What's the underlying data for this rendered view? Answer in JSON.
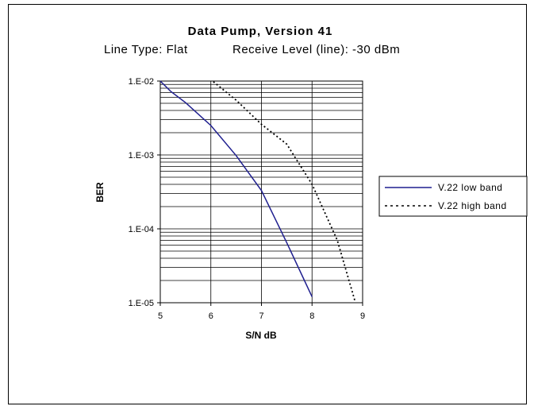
{
  "chart_data": {
    "type": "line",
    "title": "Data Pump, Version 41",
    "subtitle_left": "Line Type: Flat",
    "subtitle_right": "Receive Level (line): -30 dBm",
    "xlabel": "S/N dB",
    "ylabel": "BER",
    "xlim": [
      5,
      9
    ],
    "ylim": [
      1e-05,
      0.01
    ],
    "yscale": "log",
    "x_ticks": [
      "5",
      "6",
      "7",
      "8",
      "9"
    ],
    "y_ticks": [
      "1.E-02",
      "1.E-03",
      "1.E-04",
      "1.E-05"
    ],
    "grid": true,
    "legend_position": "right",
    "series": [
      {
        "name": "V.22 low band",
        "color": "#1f1f8f",
        "style": "solid",
        "x": [
          5.0,
          5.2,
          5.5,
          6.0,
          6.5,
          7.0,
          7.5,
          8.0
        ],
        "y": [
          0.01,
          0.0073,
          0.0051,
          0.0025,
          0.00098,
          0.00033,
          6.5e-05,
          1.2e-05
        ]
      },
      {
        "name": "V.22 high band",
        "color": "#000000",
        "style": "dotted",
        "x": [
          6.05,
          6.5,
          7.0,
          7.5,
          8.0,
          8.5,
          8.85
        ],
        "y": [
          0.0098,
          0.0055,
          0.0026,
          0.0014,
          0.0004,
          7e-05,
          1.05e-05
        ]
      }
    ]
  }
}
